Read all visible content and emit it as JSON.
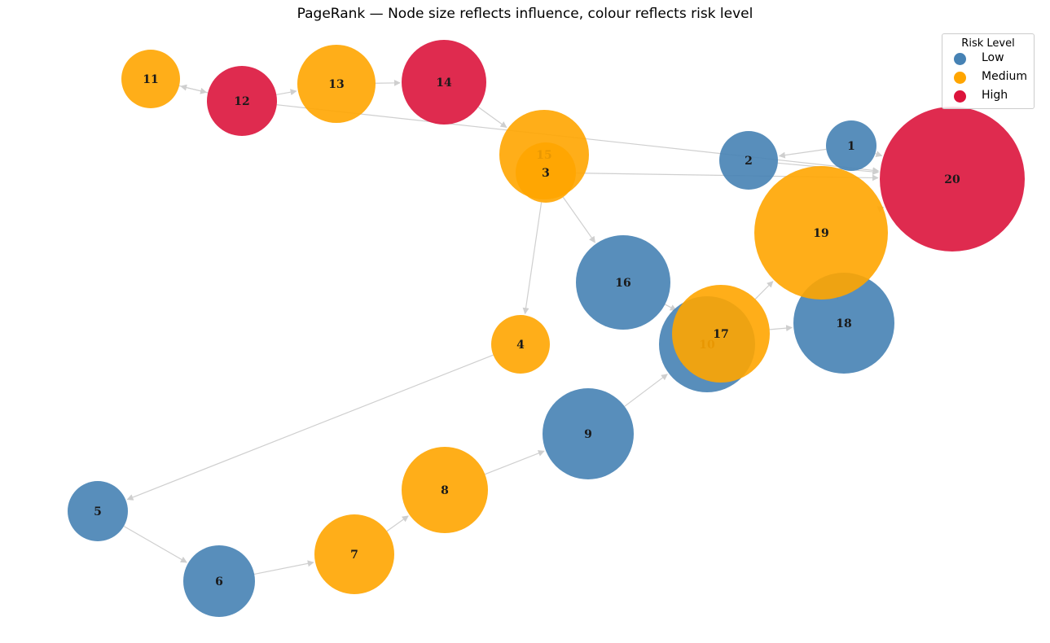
{
  "title": "PageRank — Node size reflects influence, colour reflects risk level",
  "legend": {
    "title": "Risk Level",
    "items": [
      {
        "label": "Low",
        "color": "#4682b4"
      },
      {
        "label": "Medium",
        "color": "#ffa500"
      },
      {
        "label": "High",
        "color": "#dc143c"
      }
    ]
  },
  "colors": {
    "Low": "#4682b4",
    "Medium": "#ffa500",
    "High": "#dc143c",
    "edge": "#cfcfcf"
  },
  "nodes": [
    {
      "id": "1",
      "risk": "Low"
    },
    {
      "id": "2",
      "risk": "Low"
    },
    {
      "id": "3",
      "risk": "Medium"
    },
    {
      "id": "4",
      "risk": "Medium"
    },
    {
      "id": "5",
      "risk": "Low"
    },
    {
      "id": "6",
      "risk": "Low"
    },
    {
      "id": "7",
      "risk": "Medium"
    },
    {
      "id": "8",
      "risk": "Medium"
    },
    {
      "id": "9",
      "risk": "Low"
    },
    {
      "id": "10",
      "risk": "Low"
    },
    {
      "id": "11",
      "risk": "Medium"
    },
    {
      "id": "12",
      "risk": "High"
    },
    {
      "id": "13",
      "risk": "Medium"
    },
    {
      "id": "14",
      "risk": "High"
    },
    {
      "id": "15",
      "risk": "Medium"
    },
    {
      "id": "16",
      "risk": "Low"
    },
    {
      "id": "17",
      "risk": "Medium"
    },
    {
      "id": "18",
      "risk": "Low"
    },
    {
      "id": "19",
      "risk": "Medium"
    },
    {
      "id": "20",
      "risk": "High"
    }
  ],
  "edges": [
    [
      "1",
      "2"
    ],
    [
      "1",
      "20"
    ],
    [
      "2",
      "20"
    ],
    [
      "3",
      "20"
    ],
    [
      "3",
      "4"
    ],
    [
      "3",
      "16"
    ],
    [
      "4",
      "5"
    ],
    [
      "5",
      "6"
    ],
    [
      "6",
      "7"
    ],
    [
      "7",
      "8"
    ],
    [
      "8",
      "9"
    ],
    [
      "9",
      "10"
    ],
    [
      "10",
      "17"
    ],
    [
      "16",
      "17"
    ],
    [
      "17",
      "19"
    ],
    [
      "17",
      "18"
    ],
    [
      "18",
      "19"
    ],
    [
      "19",
      "20"
    ],
    [
      "11",
      "12"
    ],
    [
      "12",
      "11"
    ],
    [
      "12",
      "13"
    ],
    [
      "13",
      "14"
    ],
    [
      "14",
      "15"
    ],
    [
      "12",
      "20"
    ]
  ]
}
